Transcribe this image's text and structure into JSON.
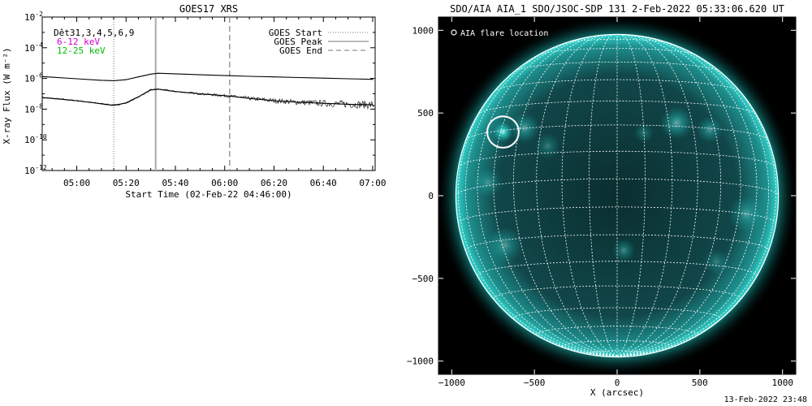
{
  "footer_text": "13-Feb-2022 23:48",
  "colors": {
    "flux_line": "#000000",
    "noise": "#000000",
    "low_band": "#cc00cc",
    "high_band": "#00bb00",
    "sun_glow": "#12c5c0",
    "sun_disk": "#0d3a3c",
    "grid": "#ffffff"
  },
  "chart_data": [
    {
      "type": "line",
      "title": "GOES17 XRS",
      "xlabel": "Start Time (02-Feb-22 04:46:00)",
      "ylabel": "X-ray Flux (W m⁻²)",
      "y_scale": "log",
      "ylim_exp": [
        -12,
        -2
      ],
      "y_ticks": [
        {
          "exp": -2,
          "label": "10",
          "sup": "-2"
        },
        {
          "exp": -4,
          "label": "10",
          "sup": "-4"
        },
        {
          "exp": -6,
          "label": "10",
          "sup": "-6"
        },
        {
          "exp": -8,
          "label": "10",
          "sup": "-8"
        },
        {
          "exp": -10,
          "label": "10",
          "sup": "-10"
        },
        {
          "exp": -12,
          "label": "10",
          "sup": "-12"
        }
      ],
      "x_ticks": [
        "05:00",
        "05:20",
        "05:40",
        "06:00",
        "06:20",
        "06:40",
        "07:00"
      ],
      "x_tick_minutes": [
        300,
        320,
        340,
        360,
        380,
        400,
        420
      ],
      "x_range_minutes": [
        286,
        421
      ],
      "detectors_label": "Dêt31,3,4,5,6,9",
      "band_labels": [
        {
          "text": "6-12 keV",
          "color": "#cc00cc"
        },
        {
          "text": "12-25 keV",
          "color": "#00bb00"
        }
      ],
      "legend": [
        {
          "text": "GOES Start",
          "style": "dotted"
        },
        {
          "text": "GOES Peak",
          "style": "solid"
        },
        {
          "text": "GOES End",
          "style": "dashed"
        }
      ],
      "markers": {
        "start": 315,
        "peak": 332,
        "end": 362
      },
      "series": [
        {
          "name": "long",
          "x": [
            286,
            290,
            300,
            310,
            315,
            320,
            325,
            330,
            333,
            340,
            350,
            362,
            370,
            380,
            390,
            400,
            410,
            420
          ],
          "y_exp": [
            -5.88,
            -5.92,
            -6.02,
            -6.12,
            -6.15,
            -6.08,
            -5.9,
            -5.72,
            -5.66,
            -5.7,
            -5.76,
            -5.82,
            -5.86,
            -5.9,
            -5.94,
            -5.98,
            -6.02,
            -6.06
          ]
        },
        {
          "name": "short",
          "x": [
            286,
            290,
            300,
            310,
            315,
            320,
            325,
            330,
            333,
            340,
            350,
            362,
            370,
            380,
            390,
            400,
            410,
            420
          ],
          "y_exp": [
            -7.25,
            -7.3,
            -7.45,
            -7.65,
            -7.75,
            -7.6,
            -7.2,
            -6.75,
            -6.7,
            -6.85,
            -7.0,
            -7.15,
            -7.3,
            -7.45,
            -7.55,
            -7.62,
            -7.68,
            -7.72
          ]
        }
      ]
    },
    {
      "type": "image",
      "title": "SDO/AIA AIA_1 SDO/JSOC-SDP 131  2-Feb-2022 05:33:06.620 UT",
      "xlabel": "X (arcsec)",
      "x_ticks": [
        -1000,
        -500,
        0,
        500,
        1000
      ],
      "y_ticks": [
        1000,
        500,
        0,
        -500,
        -1000
      ],
      "xlim": [
        -1080,
        1080
      ],
      "ylim": [
        -1080,
        1080
      ],
      "solar_radius_arcsec": 975,
      "b0_deg": -6,
      "grid_step_deg": 10,
      "flare_location_label": "AIA flare location",
      "flare_location": {
        "x": -690,
        "y": 385,
        "r": 95
      },
      "bright_regions": [
        {
          "x": -690,
          "y": 385,
          "r": 60,
          "i": 0.95
        },
        {
          "x": -560,
          "y": 410,
          "r": 90,
          "i": 0.5
        },
        {
          "x": 360,
          "y": 440,
          "r": 100,
          "i": 0.55
        },
        {
          "x": 560,
          "y": 400,
          "r": 80,
          "i": 0.45
        },
        {
          "x": -780,
          "y": 80,
          "r": 90,
          "i": 0.35
        },
        {
          "x": -680,
          "y": -300,
          "r": 110,
          "i": 0.45
        },
        {
          "x": 40,
          "y": -330,
          "r": 70,
          "i": 0.4
        },
        {
          "x": 780,
          "y": -110,
          "r": 110,
          "i": 0.4
        },
        {
          "x": 600,
          "y": -400,
          "r": 80,
          "i": 0.3
        },
        {
          "x": -1000,
          "y": 450,
          "r": 90,
          "i": 0.5
        },
        {
          "x": 990,
          "y": 100,
          "r": 80,
          "i": 0.4
        },
        {
          "x": -420,
          "y": 300,
          "r": 80,
          "i": 0.3
        },
        {
          "x": 160,
          "y": 380,
          "r": 60,
          "i": 0.3
        }
      ]
    }
  ]
}
